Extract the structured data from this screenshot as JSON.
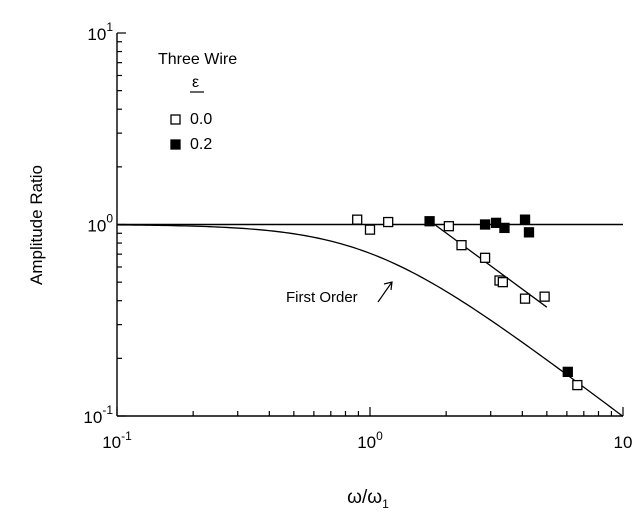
{
  "chart_data": {
    "type": "scatter",
    "xscale": "log",
    "yscale": "log",
    "xlim": [
      0.1,
      10
    ],
    "ylim": [
      0.1,
      10
    ],
    "xlabel": {
      "main": "ω/ω",
      "sub": "1"
    },
    "ylabel": "Amplitude Ratio",
    "x_ticks": [
      {
        "base": "10",
        "exp": "-1"
      },
      {
        "base": "10",
        "exp": "0"
      },
      {
        "base": "10",
        "exp": ""
      }
    ],
    "y_ticks": [
      {
        "base": "10",
        "exp": "-1"
      },
      {
        "base": "10",
        "exp": "0"
      },
      {
        "base": "10",
        "exp": "1"
      }
    ],
    "legend": {
      "title": "Three Wire",
      "param": "ε",
      "placement": "top-left",
      "entries": [
        "0.0",
        "0.2"
      ]
    },
    "series": [
      {
        "name": "0.0",
        "marker": "open-square",
        "points": [
          [
            0.89,
            1.06
          ],
          [
            1.0,
            0.94
          ],
          [
            1.18,
            1.03
          ],
          [
            2.05,
            0.98
          ],
          [
            2.3,
            0.78
          ],
          [
            2.85,
            0.67
          ],
          [
            3.25,
            0.51
          ],
          [
            3.35,
            0.5
          ],
          [
            4.1,
            0.41
          ],
          [
            4.9,
            0.42
          ],
          [
            6.6,
            0.145
          ]
        ]
      },
      {
        "name": "0.2",
        "marker": "filled-square",
        "points": [
          [
            1.72,
            1.04
          ],
          [
            2.85,
            1.0
          ],
          [
            3.15,
            1.02
          ],
          [
            3.4,
            0.96
          ],
          [
            4.1,
            1.06
          ],
          [
            4.25,
            0.91
          ],
          [
            6.05,
            0.17
          ]
        ]
      }
    ],
    "lines": [
      {
        "type": "reference",
        "y": 1.0
      },
      {
        "type": "segment",
        "points": [
          [
            1.8,
            1.0
          ],
          [
            5.0,
            0.37
          ]
        ]
      },
      {
        "type": "curve",
        "name": "First Order",
        "formula": "1/sqrt(1+(x/x0)^2)",
        "x0": 1.0
      }
    ],
    "annotation": {
      "text": "First Order",
      "x": 1.0,
      "y": 0.42
    }
  }
}
